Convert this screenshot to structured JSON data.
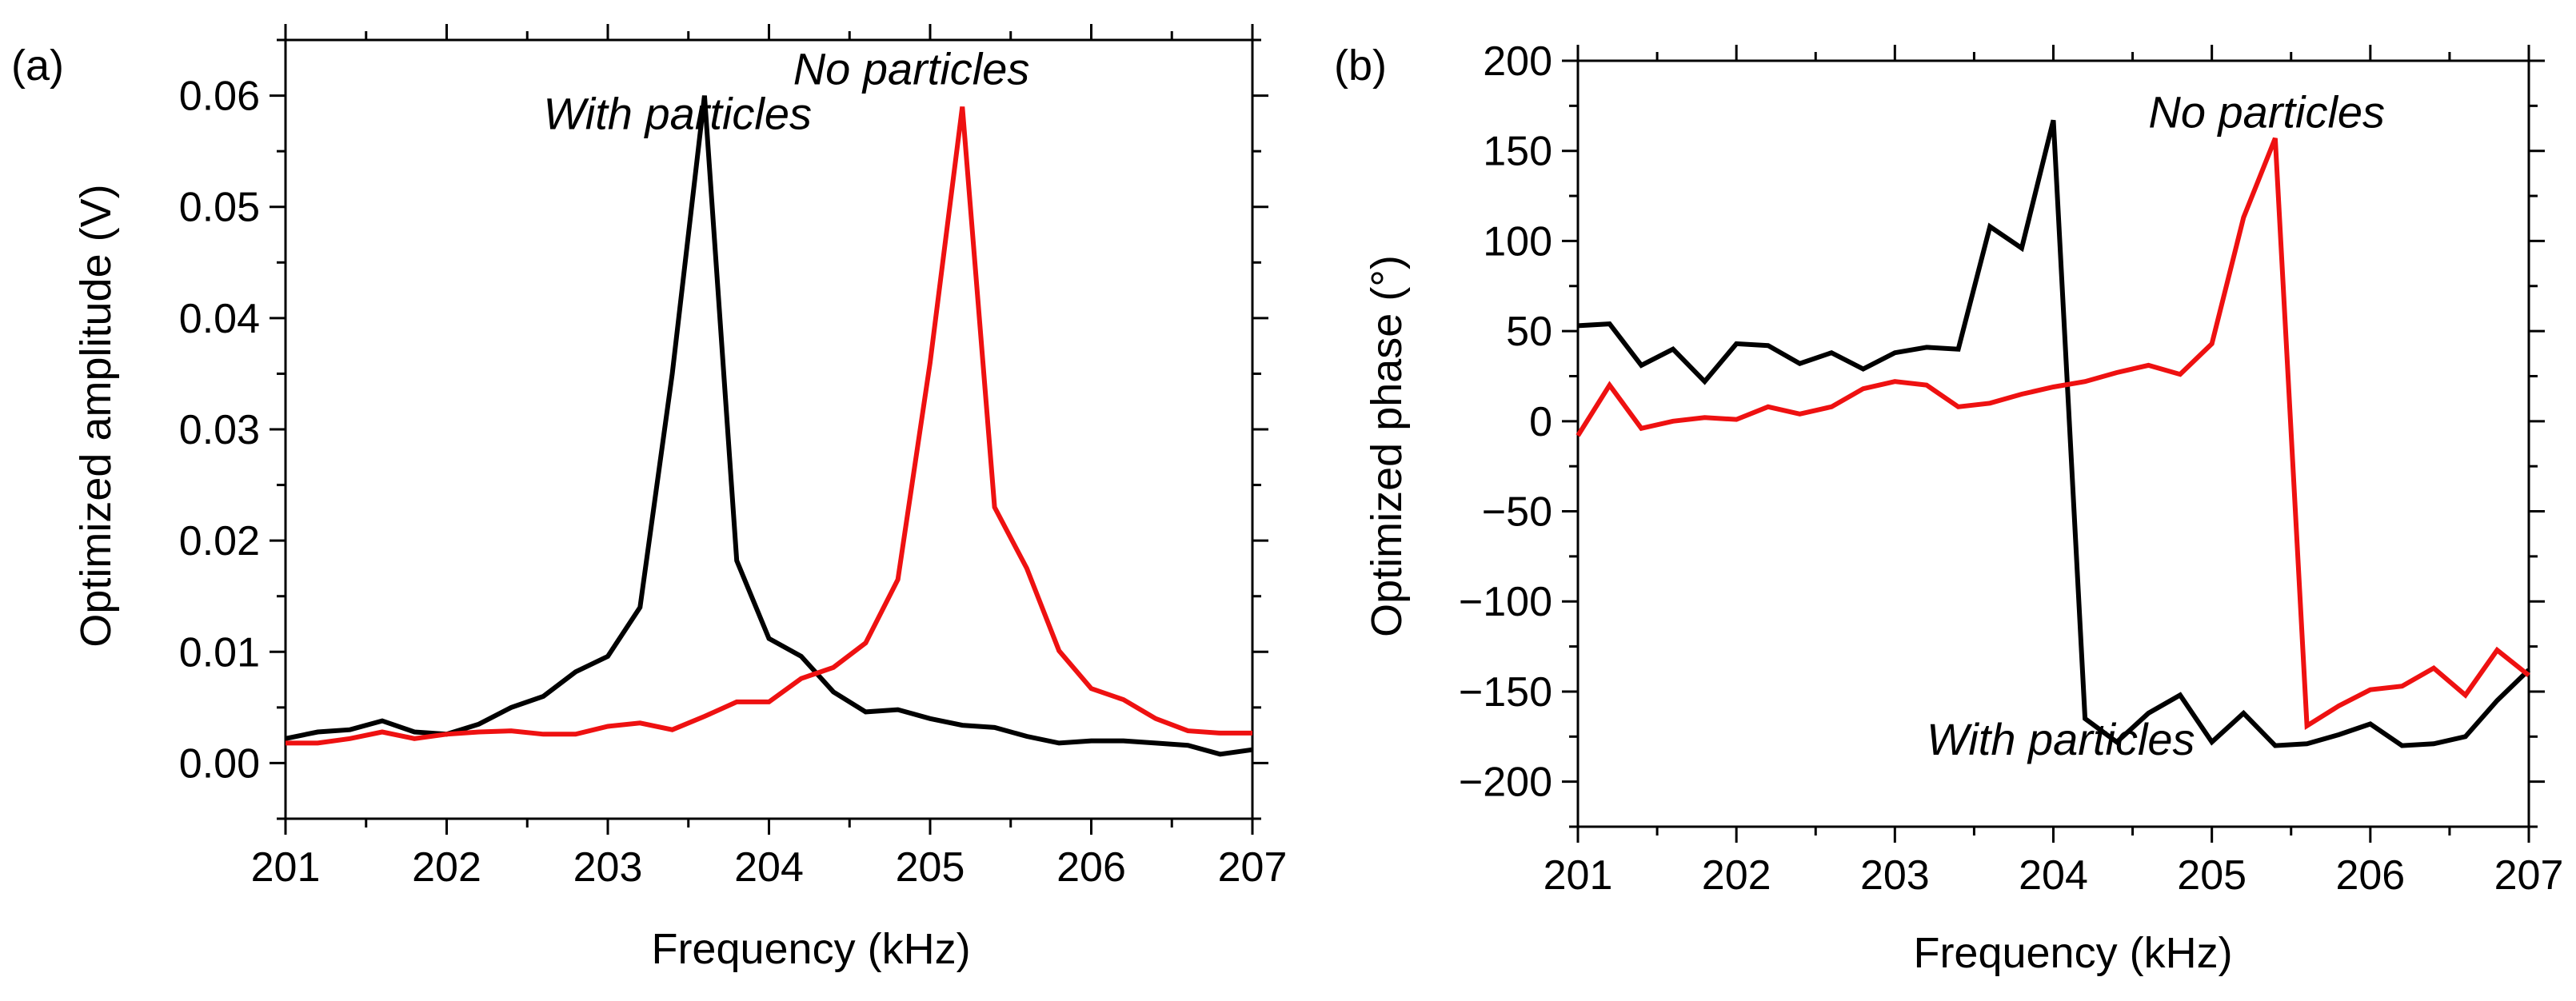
{
  "colors": {
    "with_particles": "#000000",
    "no_particles": "#ee1111"
  },
  "chart_data": [
    {
      "type": "line",
      "panel_label": "(a)",
      "title": "",
      "xlabel": "Frequency (kHz)",
      "ylabel": "Optimized amplitude (V)",
      "xlim": [
        201,
        207
      ],
      "ylim": [
        -0.005,
        0.065
      ],
      "xticks": [
        201,
        202,
        203,
        204,
        205,
        206,
        207
      ],
      "xtick_labels": [
        "201",
        "202",
        "203",
        "204",
        "205",
        "206",
        "207"
      ],
      "yticks": [
        0.0,
        0.01,
        0.02,
        0.03,
        0.04,
        0.05,
        0.06
      ],
      "ytick_labels": [
        "0.00",
        "0.01",
        "0.02",
        "0.03",
        "0.04",
        "0.05",
        "0.06"
      ],
      "grid": false,
      "annotations": [
        {
          "text": "With particles",
          "x": 202.6,
          "y": 0.057,
          "series": "With particles"
        },
        {
          "text": "No particles",
          "x": 204.15,
          "y": 0.061,
          "series": "No particles"
        }
      ],
      "series": [
        {
          "name": "With particles",
          "color": "#000000",
          "x": [
            201.0,
            201.2,
            201.4,
            201.6,
            201.8,
            202.0,
            202.2,
            202.4,
            202.6,
            202.8,
            203.0,
            203.2,
            203.4,
            203.6,
            203.8,
            204.0,
            204.2,
            204.4,
            204.6,
            204.8,
            205.0,
            205.2,
            205.4,
            205.6,
            205.8,
            206.0,
            206.2,
            206.4,
            206.6,
            206.8,
            207.0
          ],
          "y": [
            0.0022,
            0.0028,
            0.003,
            0.0038,
            0.0028,
            0.0026,
            0.0035,
            0.005,
            0.006,
            0.0082,
            0.0096,
            0.014,
            0.035,
            0.06,
            0.0182,
            0.0112,
            0.0096,
            0.0064,
            0.0046,
            0.0048,
            0.004,
            0.0034,
            0.0032,
            0.0024,
            0.0018,
            0.002,
            0.002,
            0.0018,
            0.0016,
            0.0008,
            0.0012
          ]
        },
        {
          "name": "No particles",
          "color": "#ee1111",
          "x": [
            201.0,
            201.2,
            201.4,
            201.6,
            201.8,
            202.0,
            202.2,
            202.4,
            202.6,
            202.8,
            203.0,
            203.2,
            203.4,
            203.6,
            203.8,
            204.0,
            204.2,
            204.4,
            204.6,
            204.8,
            205.0,
            205.2,
            205.4,
            205.6,
            205.8,
            206.0,
            206.2,
            206.4,
            206.6,
            206.8,
            207.0
          ],
          "y": [
            0.0018,
            0.0018,
            0.0022,
            0.0028,
            0.0022,
            0.0026,
            0.0028,
            0.0029,
            0.0026,
            0.0026,
            0.0033,
            0.0036,
            0.003,
            0.0042,
            0.0055,
            0.0055,
            0.0076,
            0.0086,
            0.0108,
            0.0165,
            0.036,
            0.059,
            0.023,
            0.0175,
            0.0101,
            0.0067,
            0.0057,
            0.004,
            0.0029,
            0.0027,
            0.0027
          ]
        }
      ]
    },
    {
      "type": "line",
      "panel_label": "(b)",
      "title": "",
      "xlabel": "Frequency (kHz)",
      "ylabel": "Optimized phase (°)",
      "xlim": [
        201,
        207
      ],
      "ylim": [
        -225,
        200
      ],
      "xticks": [
        201,
        202,
        203,
        204,
        205,
        206,
        207
      ],
      "xtick_labels": [
        "201",
        "202",
        "203",
        "204",
        "205",
        "206",
        "207"
      ],
      "yticks": [
        200,
        150,
        100,
        50,
        0,
        -50,
        -100,
        -150,
        -200
      ],
      "ytick_labels": [
        "200",
        "150",
        "100",
        "50",
        "0",
        "−50",
        "−100",
        "−150",
        "−200"
      ],
      "grid": false,
      "annotations": [
        {
          "text": "No particles",
          "x": 204.6,
          "y": 163,
          "series": "No particles"
        },
        {
          "text": "With particles",
          "x": 203.2,
          "y": -185,
          "series": "With particles"
        }
      ],
      "series": [
        {
          "name": "With particles",
          "color": "#000000",
          "x": [
            201.0,
            201.2,
            201.4,
            201.6,
            201.8,
            202.0,
            202.2,
            202.4,
            202.6,
            202.8,
            203.0,
            203.2,
            203.4,
            203.6,
            203.8,
            204.0,
            204.2,
            204.4,
            204.6,
            204.8,
            205.0,
            205.2,
            205.4,
            205.6,
            205.8,
            206.0,
            206.2,
            206.4,
            206.6,
            206.8,
            207.0
          ],
          "y": [
            53,
            54,
            31,
            40,
            22,
            43,
            42,
            32,
            38,
            29,
            38,
            41,
            40,
            108,
            96,
            167,
            -165,
            -178,
            -162,
            -152,
            -178,
            -162,
            -180,
            -179,
            -174,
            -168,
            -180,
            -179,
            -175,
            -155,
            -138
          ]
        },
        {
          "name": "No particles",
          "color": "#ee1111",
          "x": [
            201.0,
            201.2,
            201.4,
            201.6,
            201.8,
            202.0,
            202.2,
            202.4,
            202.6,
            202.8,
            203.0,
            203.2,
            203.4,
            203.6,
            203.8,
            204.0,
            204.2,
            204.4,
            204.6,
            204.8,
            205.0,
            205.2,
            205.4,
            205.6,
            205.8,
            206.0,
            206.2,
            206.4,
            206.6,
            206.8,
            207.0
          ],
          "y": [
            -8,
            20,
            -4,
            0,
            2,
            1,
            8,
            4,
            8,
            18,
            22,
            20,
            8,
            10,
            15,
            19,
            22,
            27,
            31,
            26,
            43,
            113,
            157,
            -169,
            -158,
            -149,
            -147,
            -137,
            -152,
            -127,
            -141
          ]
        }
      ]
    }
  ]
}
